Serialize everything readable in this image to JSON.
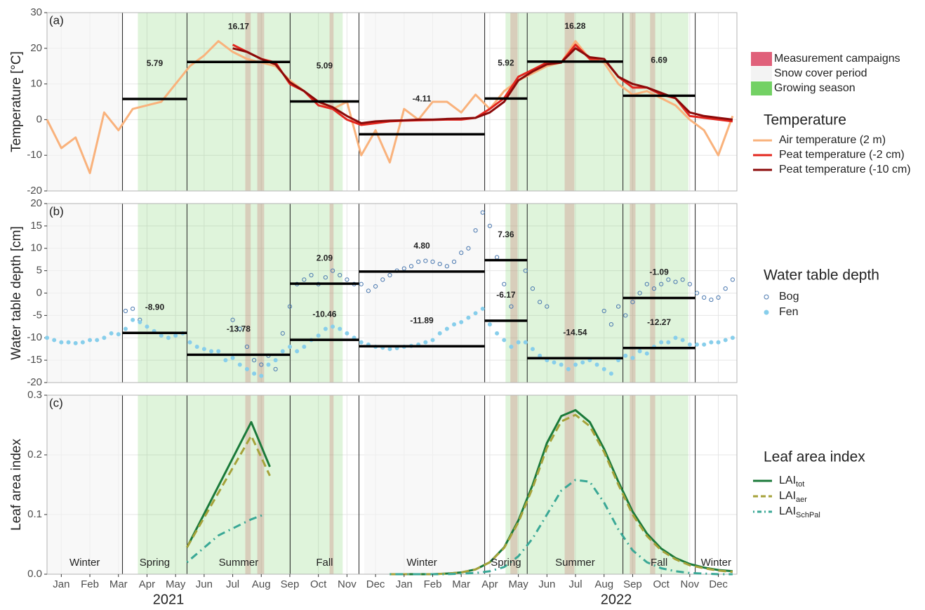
{
  "timeline": {
    "xlim": [
      -0.5,
      23.65
    ],
    "xticks": [
      {
        "value": 0,
        "label": "Jan"
      },
      {
        "value": 1,
        "label": "Feb"
      },
      {
        "value": 2,
        "label": "Mar"
      },
      {
        "value": 3,
        "label": "Apr"
      },
      {
        "value": 4,
        "label": "May"
      },
      {
        "value": 5,
        "label": "Jun"
      },
      {
        "value": 6,
        "label": "Jul"
      },
      {
        "value": 7,
        "label": "Aug"
      },
      {
        "value": 8,
        "label": "Sep"
      },
      {
        "value": 9,
        "label": "Oct"
      },
      {
        "value": 10,
        "label": "Nov"
      },
      {
        "value": 11,
        "label": "Dec"
      },
      {
        "value": 12,
        "label": "Jan"
      },
      {
        "value": 13,
        "label": "Feb"
      },
      {
        "value": 14,
        "label": "Mar"
      },
      {
        "value": 15,
        "label": "Apr"
      },
      {
        "value": 16,
        "label": "May"
      },
      {
        "value": 17,
        "label": "Jun"
      },
      {
        "value": 18,
        "label": "Jul"
      },
      {
        "value": 19,
        "label": "Aug"
      },
      {
        "value": 20,
        "label": "Sep"
      },
      {
        "value": 21,
        "label": "Oct"
      },
      {
        "value": 22,
        "label": "Nov"
      },
      {
        "value": 23,
        "label": "Dec"
      }
    ],
    "years": [
      "2021",
      "2022"
    ],
    "season_boundaries": [
      2.14,
      4.4,
      8.01,
      10.42,
      14.82,
      16.31,
      19.66,
      22.19
    ],
    "season_labels": [
      "Winter",
      "Spring",
      "Summer",
      "Fall",
      "Winter",
      "Spring",
      "Summer",
      "Fall",
      "Winter"
    ],
    "shading": [
      {
        "name": "Measurement campaigns",
        "color": "#e0607a",
        "periods": [
          [
            6.44,
            6.63
          ],
          [
            6.86,
            7.1
          ],
          [
            9.39,
            9.53
          ],
          [
            15.72,
            15.97
          ],
          [
            17.62,
            17.96
          ],
          [
            19.9,
            20.1
          ],
          [
            20.61,
            20.79
          ]
        ]
      },
      {
        "name": "Snow cover period",
        "color": "#f3f3f3",
        "periods": [
          [
            -0.5,
            2.2
          ],
          [
            10.6,
            14.85
          ]
        ]
      },
      {
        "name": "Growing season",
        "color": "#6ccf5c",
        "periods": [
          [
            2.68,
            9.85
          ],
          [
            15.55,
            21.95
          ]
        ]
      }
    ]
  },
  "chart_data": [
    {
      "type": "line",
      "panel_label": "(a)",
      "ylabel": "Temperature [°C]",
      "legend_title": "Temperature",
      "ylim": [
        -20,
        30
      ],
      "yticks": [
        -20,
        -10,
        0,
        10,
        20,
        30
      ],
      "grid": true,
      "series": [
        {
          "name": "Air temperature (2 m)",
          "color": "#f9b27c",
          "x": [
            -0.5,
            0,
            0.5,
            1,
            1.5,
            2,
            2.5,
            3,
            3.5,
            4,
            4.5,
            5,
            5.5,
            6,
            6.5,
            7,
            7.5,
            8,
            8.5,
            9,
            9.5,
            10,
            10.5,
            11,
            11.5,
            12,
            12.5,
            13,
            13.5,
            14,
            14.5,
            15,
            15.5,
            16,
            16.5,
            17,
            17.5,
            18,
            18.5,
            19,
            19.5,
            20,
            20.5,
            21,
            21.5,
            22,
            22.5,
            23,
            23.5
          ],
          "values": [
            0,
            -8,
            -5,
            -15,
            2,
            -3,
            3,
            4,
            5,
            10,
            15,
            18,
            22,
            19,
            17,
            16,
            15,
            11,
            8,
            5,
            3,
            5,
            -10,
            -3,
            -12,
            3,
            0,
            5,
            5,
            2,
            7,
            3,
            8,
            11,
            13,
            15,
            16,
            22,
            17,
            16,
            10,
            7,
            8,
            6,
            4,
            0,
            -3,
            -10,
            1
          ]
        },
        {
          "name": "Peat temperature (-2 cm)",
          "color": "#e3261e",
          "x": [
            6,
            6.5,
            7,
            7.5,
            8,
            8.5,
            9,
            9.5,
            10,
            10.5,
            11,
            11.5,
            12,
            12.5,
            13,
            13.5,
            14,
            14.5,
            15,
            15.5,
            16,
            16.5,
            17,
            17.5,
            18,
            18.5,
            19,
            19.5,
            20,
            20.5,
            21,
            21.5,
            22,
            22.5,
            23,
            23.5
          ],
          "values": [
            21,
            19,
            17,
            16,
            10,
            8,
            4,
            3,
            0,
            -1.5,
            -1,
            -0.5,
            -0.3,
            -0.2,
            -0.1,
            0,
            0,
            0.5,
            3,
            6,
            12,
            14,
            16,
            16,
            21,
            17,
            17,
            12,
            9,
            9,
            7,
            6,
            1,
            0.5,
            0,
            -0.5
          ]
        },
        {
          "name": "Peat temperature (-10 cm)",
          "color": "#8b0a0a",
          "x": [
            6,
            6.5,
            7,
            7.5,
            8,
            8.5,
            9,
            9.5,
            10,
            10.5,
            11,
            11.5,
            12,
            12.5,
            13,
            13.5,
            14,
            14.5,
            15,
            15.5,
            16,
            16.5,
            17,
            17.5,
            18,
            18.5,
            19,
            19.5,
            20,
            20.5,
            21,
            21.5,
            22,
            22.5,
            23,
            23.5
          ],
          "values": [
            20,
            19,
            17,
            15.5,
            10.5,
            8,
            5,
            3.5,
            1,
            -1,
            -0.5,
            -0.3,
            -0.2,
            0,
            0,
            0.2,
            0.3,
            0.5,
            2,
            5,
            11,
            13.5,
            15.5,
            16,
            20,
            17.5,
            17,
            12,
            10,
            9,
            7.5,
            6,
            2,
            1,
            0.5,
            0
          ]
        }
      ],
      "means": [
        {
          "values": [
            5.79,
            16.17,
            5.09,
            -4.11,
            5.92,
            16.28,
            6.69
          ],
          "value_labels": [
            "5.79",
            "16.17",
            "5.09",
            "-4.11",
            "5.92",
            "16.28",
            "6.69"
          ]
        }
      ]
    },
    {
      "type": "scatter",
      "panel_label": "(b)",
      "ylabel": "Water table depth [cm]",
      "legend_title": "Water table depth",
      "ylim": [
        -20,
        20
      ],
      "yticks": [
        -20,
        -15,
        -10,
        -5,
        0,
        5,
        10,
        15,
        20
      ],
      "grid": true,
      "series": [
        {
          "name": "Bog",
          "color": "#4b79b0",
          "marker": "open",
          "x": [
            2.25,
            2.5,
            2.75,
            6,
            6.25,
            6.5,
            6.75,
            7,
            7.25,
            7.5,
            7.75,
            8,
            8.25,
            8.5,
            8.75,
            9,
            9.25,
            9.5,
            9.75,
            10,
            10.25,
            10.5,
            10.75,
            11,
            11.25,
            11.5,
            11.75,
            12,
            12.25,
            12.5,
            12.75,
            13,
            13.25,
            13.5,
            13.75,
            14,
            14.25,
            14.5,
            14.75,
            15,
            15.25,
            15.5,
            15.75,
            16.25,
            16.5,
            16.75,
            17,
            19,
            19.25,
            19.5,
            19.75,
            20,
            20.25,
            20.5,
            20.75,
            21,
            21.25,
            21.5,
            21.75,
            22,
            22.25,
            22.5,
            22.75,
            23,
            23.25,
            23.5
          ],
          "values": [
            -4,
            -3.5,
            -6,
            -6,
            -8,
            -12,
            -15,
            -16,
            -14,
            -17,
            -9,
            -3,
            2,
            3,
            4,
            2,
            3.5,
            5,
            4,
            3,
            2,
            2,
            0.5,
            1.5,
            3,
            4,
            5,
            5.5,
            6,
            7,
            7.2,
            7,
            6.5,
            6,
            7,
            9,
            10,
            14,
            18,
            15,
            8,
            2,
            -3,
            5,
            1,
            -2,
            -3,
            -4,
            -7,
            -3,
            -5,
            -2,
            0,
            2,
            1,
            2,
            3,
            2.5,
            3,
            2,
            0,
            -1,
            -1.5,
            -1,
            1,
            3
          ]
        },
        {
          "name": "Fen",
          "color": "#87ceeb",
          "marker": "filled",
          "x": [
            -0.5,
            -0.25,
            0,
            0.25,
            0.5,
            0.75,
            1,
            1.25,
            1.5,
            1.75,
            2,
            2.25,
            2.5,
            2.75,
            3,
            3.25,
            3.5,
            3.75,
            4,
            4.25,
            4.5,
            4.75,
            5,
            5.25,
            5.5,
            5.75,
            6,
            6.25,
            6.5,
            6.75,
            7,
            7.25,
            7.5,
            7.75,
            8,
            8.25,
            8.5,
            8.75,
            9,
            9.25,
            9.5,
            9.75,
            10,
            10.25,
            10.5,
            10.75,
            11,
            11.25,
            11.5,
            11.75,
            12,
            12.25,
            12.5,
            12.75,
            13,
            13.25,
            13.5,
            13.75,
            14,
            14.25,
            14.5,
            14.75,
            15,
            15.25,
            15.5,
            15.75,
            16,
            16.25,
            16.5,
            16.75,
            17,
            17.25,
            17.5,
            17.75,
            18,
            18.25,
            18.5,
            18.75,
            19,
            19.25,
            19.5,
            19.75,
            20,
            20.25,
            20.5,
            20.75,
            21,
            21.25,
            21.5,
            21.75,
            22,
            22.25,
            22.5,
            22.75,
            23,
            23.25,
            23.5
          ],
          "values": [
            -10,
            -10.5,
            -11,
            -11,
            -11.2,
            -11,
            -10.5,
            -10.5,
            -10,
            -9,
            -9.2,
            -8,
            -6,
            -6.5,
            -7.5,
            -8.5,
            -9.5,
            -10,
            -9.5,
            -9,
            -11,
            -12,
            -12.5,
            -13,
            -13,
            -15,
            -14.5,
            -16,
            -17,
            -18,
            -18.5,
            -16,
            -15,
            -13,
            -12,
            -13,
            -12,
            -10.5,
            -9.5,
            -8,
            -7.5,
            -8,
            -9,
            -10,
            -11,
            -11.5,
            -12,
            -12.2,
            -12.5,
            -12.3,
            -12,
            -11.8,
            -11.5,
            -11,
            -10.5,
            -9,
            -8,
            -7,
            -6.5,
            -5.5,
            -4.5,
            -3.5,
            -7,
            -9,
            -10.5,
            -12,
            -11,
            -11,
            -12.5,
            -14,
            -15,
            -15.5,
            -16,
            -17,
            -16,
            -15.5,
            -15,
            -16,
            -17,
            -18,
            -15,
            -14,
            -14.5,
            -13,
            -13.5,
            -12,
            -11,
            -11,
            -10,
            -10.5,
            -11.5,
            -11.5,
            -11.5,
            -11,
            -11,
            -10.5,
            -10
          ]
        }
      ],
      "means": [
        {
          "values": [
            null,
            null,
            2.09,
            4.8,
            7.36,
            null,
            -1.09
          ],
          "value_labels": [
            null,
            null,
            "2.09",
            "4.80",
            "7.36",
            null,
            "-1.09"
          ]
        },
        {
          "values": [
            -8.9,
            -13.78,
            -10.46,
            -11.89,
            -6.17,
            -14.54,
            -12.27
          ],
          "value_labels": [
            "-8.90",
            "-13.78",
            "-10.46",
            "-11.89",
            "-6.17",
            "-14.54",
            "-12.27"
          ]
        }
      ]
    },
    {
      "type": "line",
      "panel_label": "(c)",
      "ylabel": "Leaf area index",
      "legend_title": "Leaf area index",
      "ylim": [
        0,
        0.3
      ],
      "yticks": [
        {
          "value": 0,
          "label": "0.0"
        },
        0.1,
        0.2,
        0.3
      ],
      "grid": true,
      "series": [
        {
          "name": "LAI",
          "subscript": "tot",
          "color": "#1b7a3a",
          "dash": "solid",
          "x": [
            4.4,
            6.65,
            7.3,
            9,
            11.5,
            12,
            12.5,
            13,
            13.5,
            14,
            14.5,
            15,
            15.5,
            16,
            16.5,
            17,
            17.5,
            18,
            18.5,
            19,
            19.5,
            20,
            20.5,
            21,
            21.5,
            22,
            22.5,
            23,
            23.5
          ],
          "values": [
            0.045,
            0.255,
            0.18,
            null,
            0,
            0,
            0,
            0,
            0.001,
            0.003,
            0.008,
            0.02,
            0.045,
            0.09,
            0.15,
            0.22,
            0.265,
            0.275,
            0.255,
            0.21,
            0.155,
            0.105,
            0.068,
            0.043,
            0.027,
            0.017,
            0.011,
            0.007,
            0.005
          ]
        },
        {
          "name": "LAI",
          "subscript": "aer",
          "color": "#a6a23a",
          "dash": "dashed",
          "x": [
            4.4,
            6.65,
            7.3,
            9,
            11.5,
            12,
            12.5,
            13,
            13.5,
            14,
            14.5,
            15,
            15.5,
            16,
            16.5,
            17,
            17.5,
            18,
            18.5,
            19,
            19.5,
            20,
            20.5,
            21,
            21.5,
            22,
            22.5,
            23,
            23.5
          ],
          "values": [
            0.045,
            0.232,
            0.165,
            null,
            0,
            0,
            0,
            0,
            0.001,
            0.003,
            0.008,
            0.02,
            0.044,
            0.087,
            0.145,
            0.212,
            0.256,
            0.267,
            0.248,
            0.205,
            0.15,
            0.1,
            0.064,
            0.04,
            0.025,
            0.015,
            0.01,
            0.006,
            0.004
          ]
        },
        {
          "name": "LAI",
          "subscript": "SchPal",
          "color": "#3aa896",
          "dash": "dashdot",
          "x": [
            4.4,
            5.5,
            6.65,
            7.1,
            9,
            11.5,
            12,
            12.5,
            13,
            13.5,
            14,
            14.5,
            15,
            15.5,
            16,
            16.5,
            17,
            17.5,
            18,
            18.5,
            19,
            19.5,
            20,
            20.5,
            21,
            21.5,
            22,
            22.5,
            23,
            23.5
          ],
          "values": [
            0.02,
            0.065,
            0.092,
            0.1,
            null,
            0,
            0,
            0,
            0,
            0,
            0.001,
            0.002,
            0.005,
            0.012,
            0.03,
            0.06,
            0.1,
            0.14,
            0.158,
            0.155,
            0.12,
            0.075,
            0.04,
            0.02,
            0.01,
            0.005,
            0.002,
            0.001,
            0,
            0
          ]
        }
      ]
    }
  ]
}
